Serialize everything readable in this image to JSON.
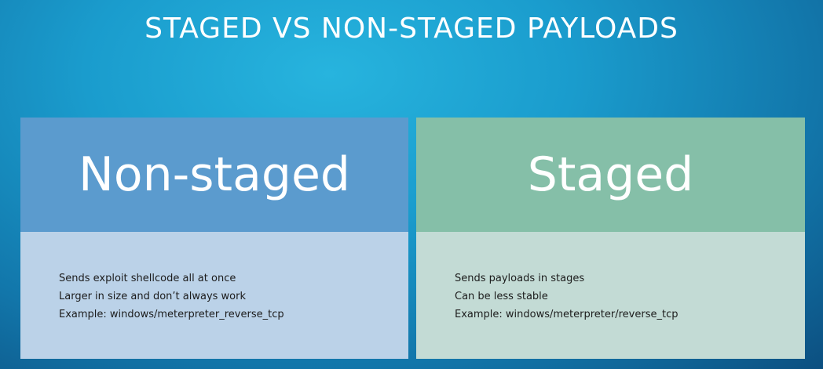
{
  "slide": {
    "title": "STAGED VS NON-STAGED PAYLOADS"
  },
  "cards": [
    {
      "heading": "Non-staged",
      "items": [
        "Sends exploit shellcode all at once",
        "Larger in size and don’t always work",
        "Example: windows/meterpreter_reverse_tcp"
      ]
    },
    {
      "heading": "Staged",
      "items": [
        "Sends payloads in stages",
        "Can be less stable",
        "Example: windows/meterpreter/reverse_tcp"
      ]
    }
  ],
  "colors": {
    "background": "#1a9ccd",
    "non_staged_header": "#5b9bce",
    "non_staged_body": "#bbd2e8",
    "staged_header": "#85bfa8",
    "staged_body": "#c3dbd5"
  }
}
